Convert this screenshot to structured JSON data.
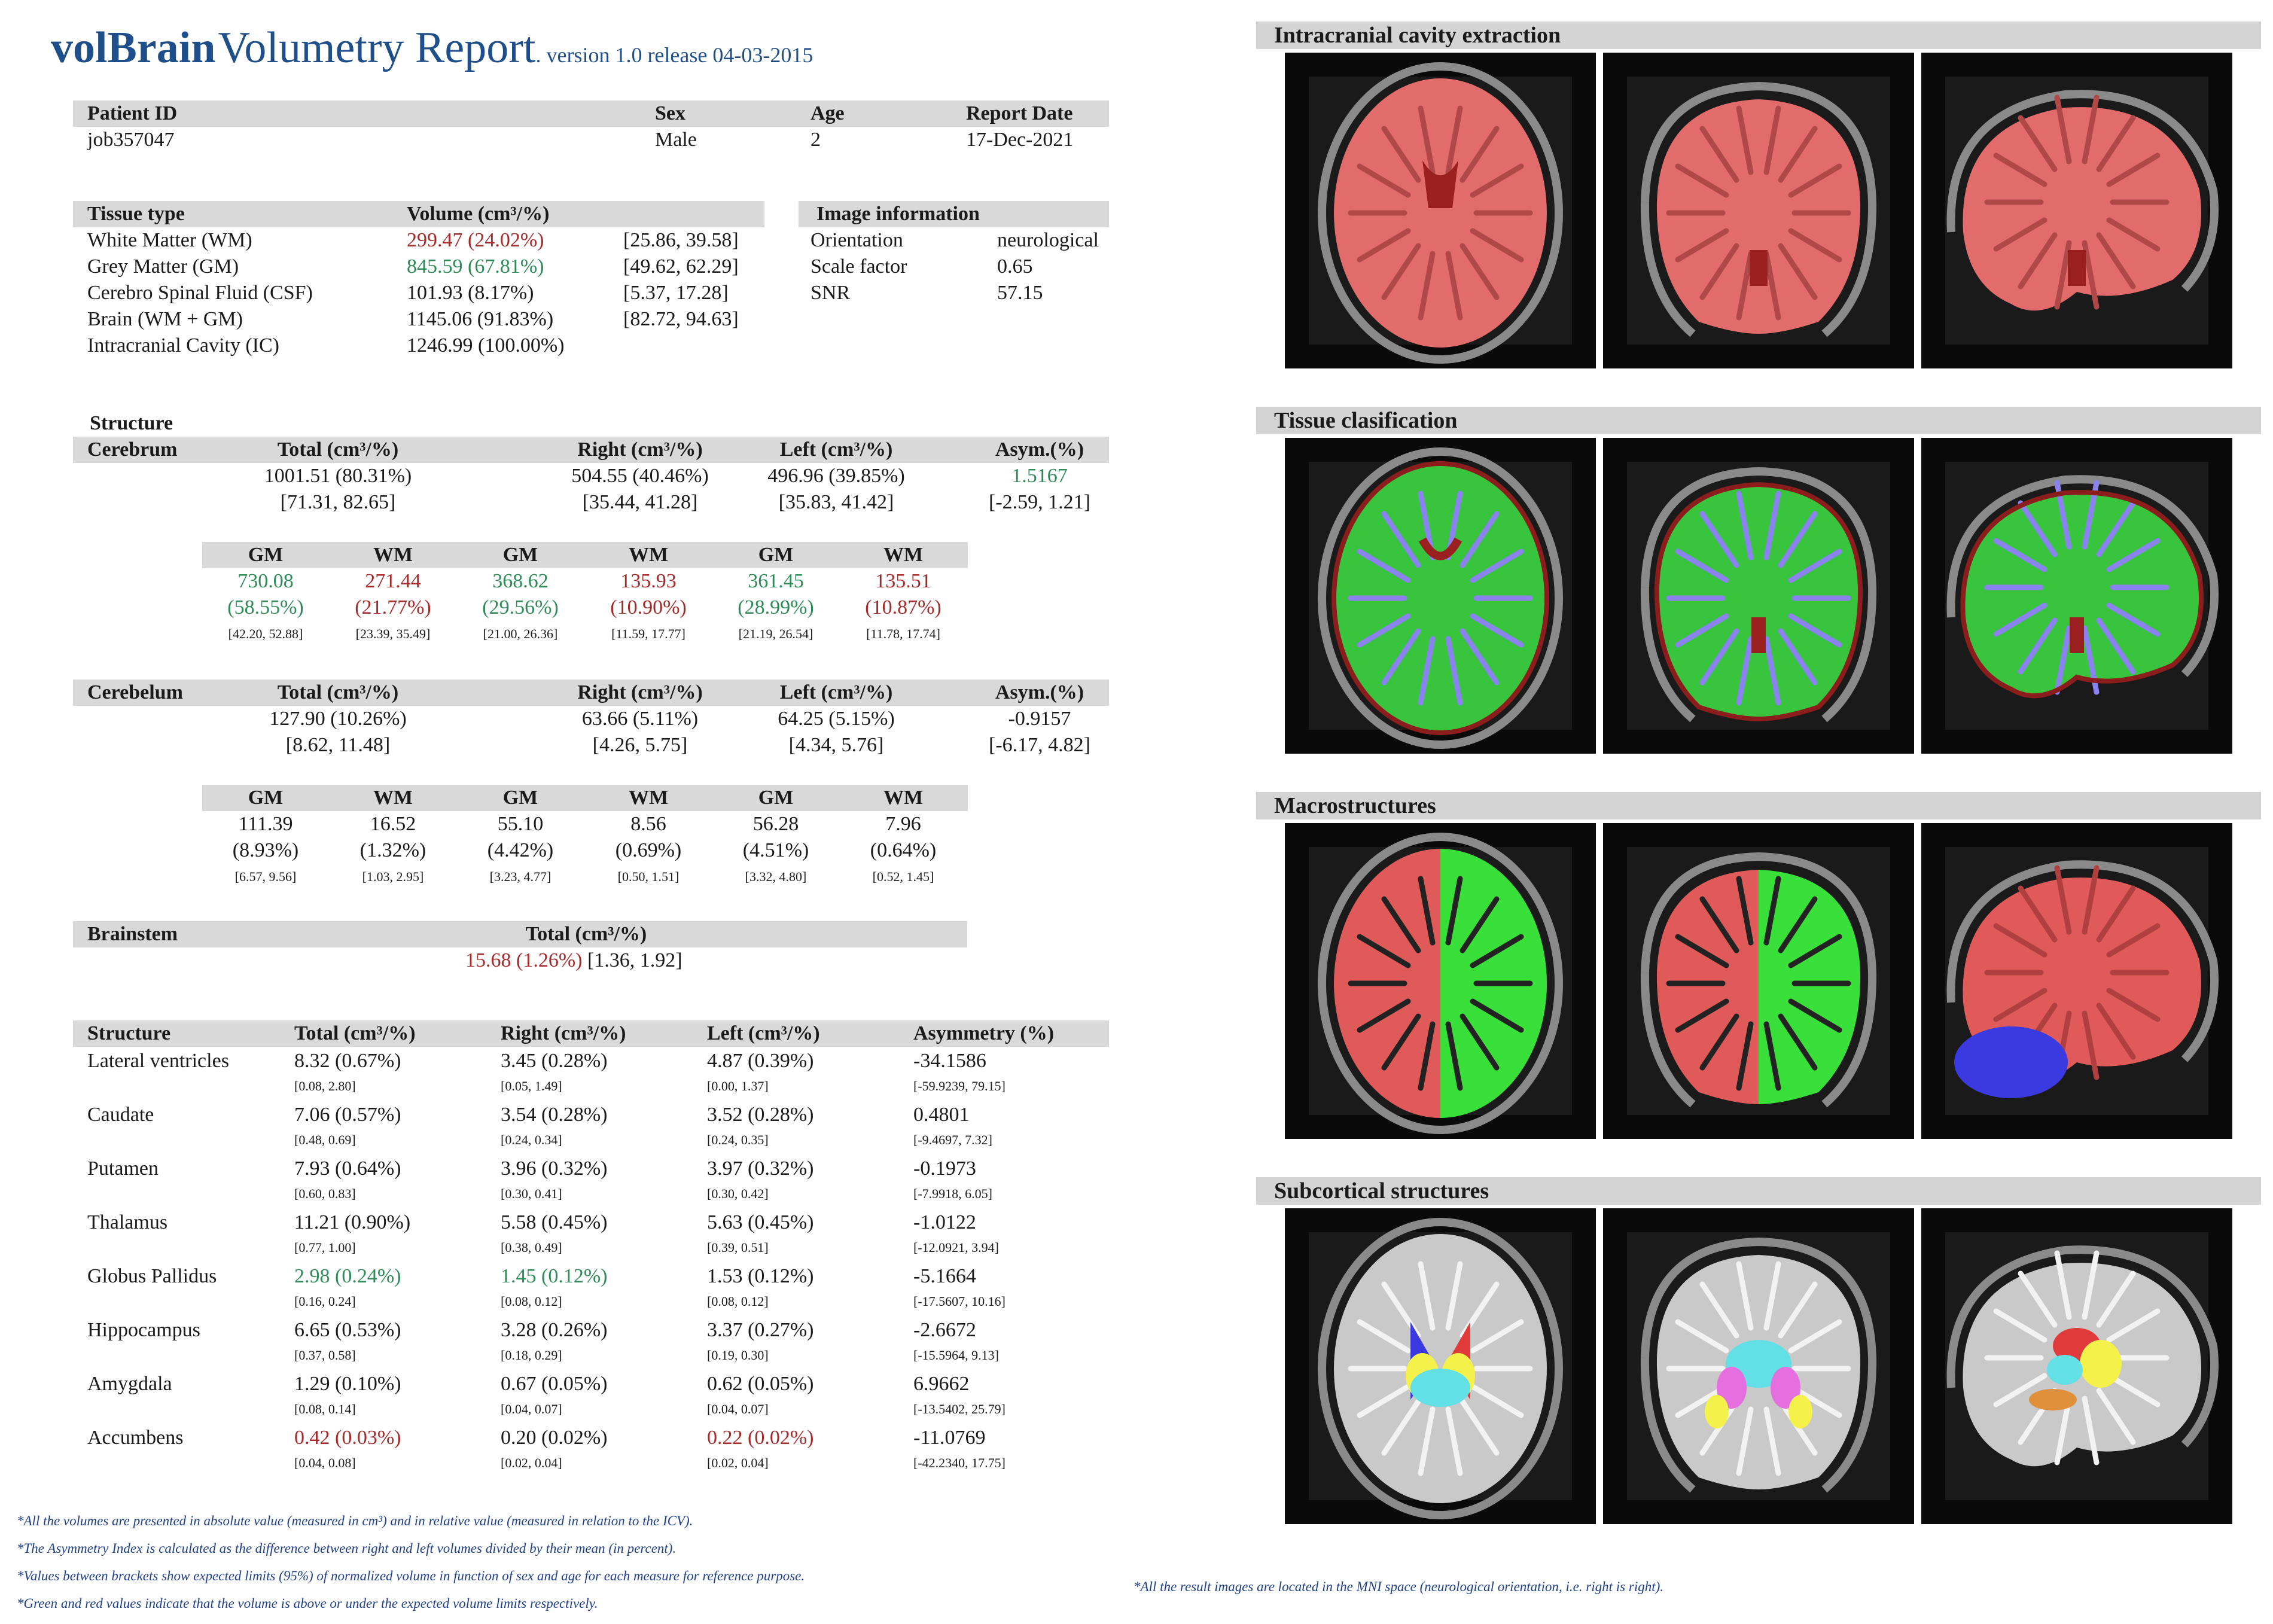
{
  "header": {
    "brand": "volBrain",
    "title": "Volumetry Report",
    "version": ". version 1.0 release 04-03-2015"
  },
  "patient": {
    "labels": [
      "Patient ID",
      "Sex",
      "Age",
      "Report Date"
    ],
    "values": [
      "job357047",
      "Male",
      "2",
      "17-Dec-2021"
    ]
  },
  "tissue": {
    "header_type": "Tissue type",
    "header_volume": "Volume (cm³/%)",
    "rows": [
      {
        "name": "White Matter (WM)",
        "volume": "299.47 (24.02%)",
        "range": "[25.86, 39.58]",
        "status": "red"
      },
      {
        "name": "Grey Matter (GM)",
        "volume": "845.59 (67.81%)",
        "range": "[49.62, 62.29]",
        "status": "green"
      },
      {
        "name": "Cerebro Spinal Fluid (CSF)",
        "volume": "101.93 (8.17%)",
        "range": "[5.37, 17.28]",
        "status": "normal"
      },
      {
        "name": "Brain (WM + GM)",
        "volume": "1145.06 (91.83%)",
        "range": "[82.72, 94.63]",
        "status": "normal"
      },
      {
        "name": "Intracranial Cavity (IC)",
        "volume": "1246.99 (100.00%)",
        "range": "",
        "status": "normal"
      }
    ]
  },
  "image_info": {
    "header": "Image information",
    "rows": [
      {
        "label": "Orientation",
        "value": "neurological"
      },
      {
        "label": "Scale factor",
        "value": "0.65"
      },
      {
        "label": "SNR",
        "value": "57.15"
      }
    ]
  },
  "structure_label": "Structure",
  "cerebrum": {
    "name": "Cerebrum",
    "headers": [
      "Total (cm³/%)",
      "Right (cm³/%)",
      "Left (cm³/%)",
      "Asym.(%)"
    ],
    "values": [
      "1001.51 (80.31%)",
      "504.55 (40.46%)",
      "496.96 (39.85%)",
      "1.5167"
    ],
    "ranges": [
      "[71.31, 82.65]",
      "[35.44, 41.28]",
      "[35.83, 41.42]",
      "[-2.59, 1.21]"
    ],
    "sub_headers": [
      "GM",
      "WM",
      "GM",
      "WM",
      "GM",
      "WM"
    ],
    "sub_values": [
      "730.08",
      "271.44",
      "368.62",
      "135.93",
      "361.45",
      "135.51"
    ],
    "sub_pcts": [
      "(58.55%)",
      "(21.77%)",
      "(29.56%)",
      "(10.90%)",
      "(28.99%)",
      "(10.87%)"
    ],
    "sub_ranges": [
      "[42.20, 52.88]",
      "[23.39, 35.49]",
      "[21.00, 26.36]",
      "[11.59, 17.77]",
      "[21.19, 26.54]",
      "[11.78, 17.74]"
    ]
  },
  "cerebellum": {
    "name": "Cerebelum",
    "headers": [
      "Total (cm³/%)",
      "Right (cm³/%)",
      "Left (cm³/%)",
      "Asym.(%)"
    ],
    "values": [
      "127.90 (10.26%)",
      "63.66 (5.11%)",
      "64.25 (5.15%)",
      "-0.9157"
    ],
    "ranges": [
      "[8.62, 11.48]",
      "[4.26, 5.75]",
      "[4.34, 5.76]",
      "[-6.17, 4.82]"
    ],
    "sub_headers": [
      "GM",
      "WM",
      "GM",
      "WM",
      "GM",
      "WM"
    ],
    "sub_values": [
      "111.39",
      "16.52",
      "55.10",
      "8.56",
      "56.28",
      "7.96"
    ],
    "sub_pcts": [
      "(8.93%)",
      "(1.32%)",
      "(4.42%)",
      "(0.69%)",
      "(4.51%)",
      "(0.64%)"
    ],
    "sub_ranges": [
      "[6.57, 9.56]",
      "[1.03, 2.95]",
      "[3.23, 4.77]",
      "[0.50, 1.51]",
      "[3.32, 4.80]",
      "[0.52, 1.45]"
    ]
  },
  "brainstem": {
    "name": "Brainstem",
    "header": "Total (cm³/%)",
    "value": "15.68 (1.26%)",
    "range": "[1.36, 1.92]"
  },
  "subcortical": {
    "headers": [
      "Structure",
      "Total (cm³/%)",
      "Right (cm³/%)",
      "Left (cm³/%)",
      "Asymmetry (%)"
    ],
    "rows": [
      {
        "name": "Lateral ventricles",
        "total": "8.32 (0.67%)",
        "right": "3.45 (0.28%)",
        "left": "4.87 (0.39%)",
        "asym": "-34.1586",
        "r_total": "[0.08, 2.80]",
        "r_right": "[0.05, 1.49]",
        "r_left": "[0.00, 1.37]",
        "r_asym": "[-59.9239, 79.15]"
      },
      {
        "name": "Caudate",
        "total": "7.06 (0.57%)",
        "right": "3.54 (0.28%)",
        "left": "3.52 (0.28%)",
        "asym": "0.4801",
        "r_total": "[0.48, 0.69]",
        "r_right": "[0.24, 0.34]",
        "r_left": "[0.24, 0.35]",
        "r_asym": "[-9.4697, 7.32]"
      },
      {
        "name": "Putamen",
        "total": "7.93 (0.64%)",
        "right": "3.96 (0.32%)",
        "left": "3.97 (0.32%)",
        "asym": "-0.1973",
        "r_total": "[0.60, 0.83]",
        "r_right": "[0.30, 0.41]",
        "r_left": "[0.30, 0.42]",
        "r_asym": "[-7.9918, 6.05]"
      },
      {
        "name": "Thalamus",
        "total": "11.21 (0.90%)",
        "right": "5.58 (0.45%)",
        "left": "5.63 (0.45%)",
        "asym": "-1.0122",
        "r_total": "[0.77, 1.00]",
        "r_right": "[0.38, 0.49]",
        "r_left": "[0.39, 0.51]",
        "r_asym": "[-12.0921, 3.94]"
      },
      {
        "name": "Globus Pallidus",
        "total": "2.98 (0.24%)",
        "right": "1.45 (0.12%)",
        "left": "1.53 (0.12%)",
        "asym": "-5.1664",
        "r_total": "[0.16, 0.24]",
        "r_right": "[0.08, 0.12]",
        "r_left": "[0.08, 0.12]",
        "r_asym": "[-17.5607, 10.16]"
      },
      {
        "name": "Hippocampus",
        "total": "6.65 (0.53%)",
        "right": "3.28 (0.26%)",
        "left": "3.37 (0.27%)",
        "asym": "-2.6672",
        "r_total": "[0.37, 0.58]",
        "r_right": "[0.18, 0.29]",
        "r_left": "[0.19, 0.30]",
        "r_asym": "[-15.5964, 9.13]"
      },
      {
        "name": "Amygdala",
        "total": "1.29 (0.10%)",
        "right": "0.67 (0.05%)",
        "left": "0.62 (0.05%)",
        "asym": "6.9662",
        "r_total": "[0.08, 0.14]",
        "r_right": "[0.04, 0.07]",
        "r_left": "[0.04, 0.07]",
        "r_asym": "[-13.5402, 25.79]"
      },
      {
        "name": "Accumbens",
        "total": "0.42 (0.03%)",
        "right": "0.20 (0.02%)",
        "left": "0.22 (0.02%)",
        "asym": "-11.0769",
        "r_total": "[0.04, 0.08]",
        "r_right": "[0.02, 0.04]",
        "r_left": "[0.02, 0.04]",
        "r_asym": "[-42.2340, 17.75]"
      }
    ]
  },
  "footnotes": [
    "*All the volumes are presented in absolute value (measured in cm³) and in relative value (measured in relation to the ICV).",
    "*The Asymmetry Index is calculated as the difference between right and left volumes divided by their mean (in percent).",
    "*Values between brackets show expected limits (95%) of normalized volume in function of sex and age for each measure for reference purpose.",
    "*Green and red values indicate that the volume is above or under the expected volume limits respectively."
  ],
  "panels": [
    {
      "title": "Intracranial cavity extraction"
    },
    {
      "title": "Tissue clasification"
    },
    {
      "title": "Macrostructures"
    },
    {
      "title": "Subcortical structures"
    }
  ],
  "panel_footnote": "*All the result images are located in the MNI space (neurological orientation, i.e. right is right).",
  "colors": {
    "title_blue": "#1f4f8a",
    "green_value": "#2e8b57",
    "red_value": "#a52a2a",
    "header_grey": "#d9d9d9"
  }
}
